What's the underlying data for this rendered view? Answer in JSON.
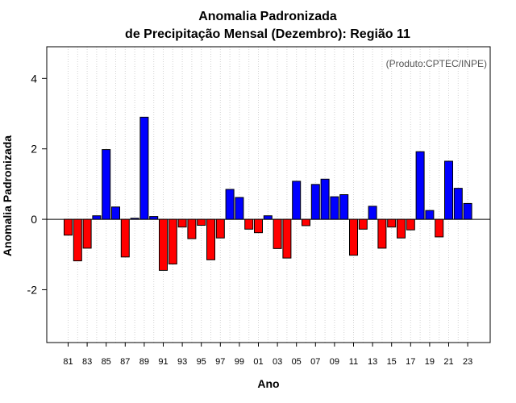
{
  "chart_data": {
    "type": "bar",
    "title_line1": "Anomalia Padronizada",
    "title_line2": "de Precipitação Mensal (Dezembro): Região 11",
    "xlabel": "Ano",
    "ylabel": "Anomalia Padronizada",
    "credit": "(Produto:CPTEC/INPE)",
    "ylim": [
      -3.5,
      4.9
    ],
    "yticks": [
      "-2",
      "0",
      "2",
      "4"
    ],
    "ytick_values": [
      -2,
      0,
      2,
      4
    ],
    "xtick_labels": [
      "81",
      "83",
      "85",
      "87",
      "89",
      "91",
      "93",
      "95",
      "97",
      "99",
      "01",
      "03",
      "05",
      "07",
      "09",
      "11",
      "13",
      "15",
      "17",
      "19",
      "21",
      "23"
    ],
    "categories": [
      "1981",
      "1982",
      "1983",
      "1984",
      "1985",
      "1986",
      "1987",
      "1988",
      "1989",
      "1990",
      "1991",
      "1992",
      "1993",
      "1994",
      "1995",
      "1996",
      "1997",
      "1998",
      "1999",
      "2000",
      "2001",
      "2002",
      "2003",
      "2004",
      "2005",
      "2006",
      "2007",
      "2008",
      "2009",
      "2010",
      "2011",
      "2012",
      "2013",
      "2014",
      "2015",
      "2016",
      "2017",
      "2018",
      "2019",
      "2020",
      "2021",
      "2022",
      "2023"
    ],
    "values": [
      -0.45,
      -1.18,
      -0.82,
      0.1,
      1.98,
      0.35,
      -1.07,
      0.03,
      2.9,
      0.08,
      -1.45,
      -1.27,
      -0.22,
      -0.55,
      -0.17,
      -1.15,
      -0.53,
      0.85,
      0.62,
      -0.28,
      -0.38,
      0.1,
      -0.83,
      -1.1,
      1.08,
      -0.18,
      0.99,
      1.14,
      0.64,
      0.7,
      -1.02,
      -0.28,
      0.37,
      -0.82,
      -0.22,
      -0.53,
      -0.3,
      1.92,
      0.25,
      -0.5,
      1.65,
      0.88,
      0.45
    ],
    "colors": {
      "positive": "#0000ff",
      "negative": "#ff0000",
      "gridline": "#d3d3d3"
    }
  }
}
